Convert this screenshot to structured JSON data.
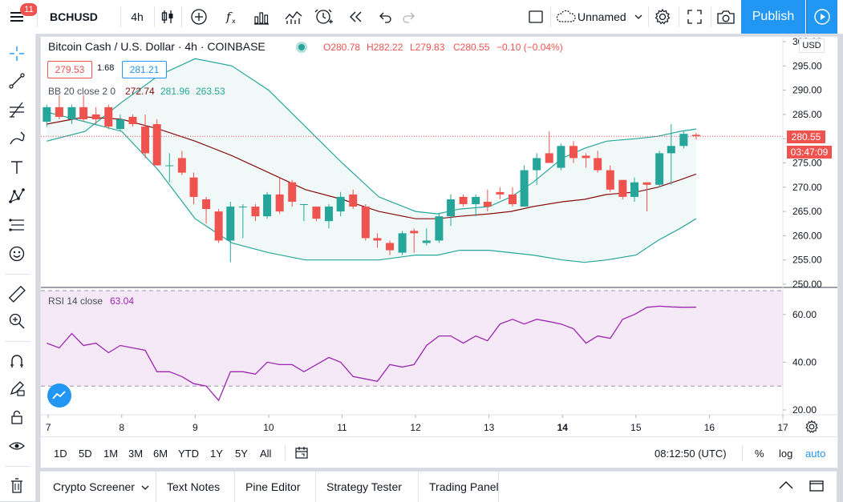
{
  "toolbar": {
    "notifications": "11",
    "symbol": "BCHUSD",
    "interval": "4h",
    "layout_name": "Unnamed",
    "publish_label": "Publish"
  },
  "legend": {
    "title": "Bitcoin Cash / U.S. Dollar · 4h · COINBASE",
    "open": "O280.78",
    "high": "H282.22",
    "low": "L279.83",
    "close": "C280.55",
    "change": "−0.10 (−0.04%)",
    "bid": "279.53",
    "spread": "1.68",
    "ask": "281.21",
    "bb_label": "BB 20 close 2 0",
    "bb_basis": "272.74",
    "bb_upper": "281.96",
    "bb_lower": "263.53",
    "rsi_label": "RSI 14 close",
    "rsi_value": "63.04"
  },
  "price_axis": {
    "currency": "USD",
    "last_price": "280.55",
    "countdown": "03:47:09"
  },
  "time_axis": {
    "time": "08:12:50 (UTC)"
  },
  "ranges": [
    "1D",
    "5D",
    "1M",
    "3M",
    "6M",
    "YTD",
    "1Y",
    "5Y",
    "All"
  ],
  "scale_options": {
    "percent": "%",
    "log": "log",
    "auto": "auto"
  },
  "bottom_tabs": [
    "Crypto Screener",
    "Text Notes",
    "Pine Editor",
    "Strategy Tester",
    "Trading Panel"
  ],
  "colors": {
    "up": "#26a69a",
    "down": "#ef5350",
    "accent": "#2196f3",
    "bb_band": "#26a69a",
    "bb_basis": "#880e0e",
    "rsi": "#9c27b0"
  },
  "chart_data": [
    {
      "type": "candlestick",
      "title": "Bitcoin Cash / U.S. Dollar · 4h · COINBASE",
      "x_ticks": [
        "7",
        "8",
        "9",
        "10",
        "11",
        "12",
        "13",
        "14",
        "15",
        "16",
        "17"
      ],
      "y_ticks": [
        250,
        255,
        260,
        265,
        270,
        275,
        280,
        285,
        290,
        295,
        300
      ],
      "ylim": [
        249.5,
        301
      ],
      "xlim": [
        6.9,
        17.0
      ],
      "candles": [
        {
          "t": 6.98,
          "o": 283.5,
          "h": 287.0,
          "l": 282.5,
          "c": 286.5
        },
        {
          "t": 7.15,
          "o": 286.5,
          "h": 289.0,
          "l": 284.0,
          "c": 284.5
        },
        {
          "t": 7.32,
          "o": 284.0,
          "h": 287.0,
          "l": 283.0,
          "c": 286.5
        },
        {
          "t": 7.48,
          "o": 286.5,
          "h": 289.0,
          "l": 283.5,
          "c": 284.0
        },
        {
          "t": 7.65,
          "o": 285.0,
          "h": 286.5,
          "l": 283.0,
          "c": 284.0
        },
        {
          "t": 7.82,
          "o": 286.5,
          "h": 287.0,
          "l": 282.0,
          "c": 282.5
        },
        {
          "t": 7.98,
          "o": 282.0,
          "h": 285.0,
          "l": 281.5,
          "c": 284.0
        },
        {
          "t": 8.15,
          "o": 284.5,
          "h": 285.0,
          "l": 282.5,
          "c": 283.0
        },
        {
          "t": 8.32,
          "o": 282.5,
          "h": 285.0,
          "l": 276.0,
          "c": 277.0
        },
        {
          "t": 8.48,
          "o": 283.0,
          "h": 284.0,
          "l": 274.5,
          "c": 274.5
        },
        {
          "t": 8.65,
          "o": 274.5,
          "h": 277.0,
          "l": 271.0,
          "c": 274.5
        },
        {
          "t": 8.82,
          "o": 276.0,
          "h": 277.5,
          "l": 272.5,
          "c": 273.0
        },
        {
          "t": 8.98,
          "o": 272.0,
          "h": 273.0,
          "l": 266.5,
          "c": 268.0
        },
        {
          "t": 9.15,
          "o": 267.5,
          "h": 268.0,
          "l": 262.5,
          "c": 265.5
        },
        {
          "t": 9.32,
          "o": 265.0,
          "h": 265.5,
          "l": 258.5,
          "c": 259.0
        },
        {
          "t": 9.48,
          "o": 259.0,
          "h": 267.0,
          "l": 254.5,
          "c": 266.0
        },
        {
          "t": 9.65,
          "o": 266.0,
          "h": 266.5,
          "l": 259.5,
          "c": 266.0
        },
        {
          "t": 9.82,
          "o": 266.0,
          "h": 266.5,
          "l": 263.0,
          "c": 264.0
        },
        {
          "t": 9.98,
          "o": 264.0,
          "h": 269.0,
          "l": 263.5,
          "c": 268.5
        },
        {
          "t": 10.15,
          "o": 268.5,
          "h": 272.0,
          "l": 264.5,
          "c": 265.0
        },
        {
          "t": 10.32,
          "o": 271.0,
          "h": 271.5,
          "l": 266.0,
          "c": 267.0
        },
        {
          "t": 10.48,
          "o": 266.5,
          "h": 266.5,
          "l": 263.0,
          "c": 266.5
        },
        {
          "t": 10.65,
          "o": 266.0,
          "h": 266.0,
          "l": 263.0,
          "c": 263.5
        },
        {
          "t": 10.82,
          "o": 263.0,
          "h": 266.5,
          "l": 261.5,
          "c": 266.0
        },
        {
          "t": 10.98,
          "o": 265.0,
          "h": 269.0,
          "l": 264.0,
          "c": 268.0
        },
        {
          "t": 11.15,
          "o": 268.5,
          "h": 269.5,
          "l": 265.5,
          "c": 266.0
        },
        {
          "t": 11.32,
          "o": 266.0,
          "h": 266.5,
          "l": 259.0,
          "c": 259.5
        },
        {
          "t": 11.48,
          "o": 259.5,
          "h": 260.5,
          "l": 257.5,
          "c": 259.0
        },
        {
          "t": 11.65,
          "o": 258.5,
          "h": 259.0,
          "l": 256.0,
          "c": 257.0
        },
        {
          "t": 11.82,
          "o": 256.5,
          "h": 261.0,
          "l": 256.0,
          "c": 260.5
        },
        {
          "t": 11.98,
          "o": 261.0,
          "h": 261.5,
          "l": 256.5,
          "c": 260.5
        },
        {
          "t": 12.15,
          "o": 258.5,
          "h": 261.5,
          "l": 258.0,
          "c": 259.0
        },
        {
          "t": 12.32,
          "o": 259.0,
          "h": 264.5,
          "l": 258.5,
          "c": 264.0
        },
        {
          "t": 12.48,
          "o": 264.0,
          "h": 268.5,
          "l": 262.0,
          "c": 267.5
        },
        {
          "t": 12.65,
          "o": 268.0,
          "h": 268.5,
          "l": 266.0,
          "c": 266.5
        },
        {
          "t": 12.82,
          "o": 266.5,
          "h": 268.5,
          "l": 264.0,
          "c": 268.0
        },
        {
          "t": 12.98,
          "o": 267.0,
          "h": 269.5,
          "l": 265.0,
          "c": 266.0
        },
        {
          "t": 13.15,
          "o": 269.0,
          "h": 270.0,
          "l": 267.5,
          "c": 268.5
        },
        {
          "t": 13.32,
          "o": 268.5,
          "h": 270.0,
          "l": 266.0,
          "c": 266.5
        },
        {
          "t": 13.48,
          "o": 266.0,
          "h": 274.5,
          "l": 266.0,
          "c": 273.5
        },
        {
          "t": 13.65,
          "o": 273.5,
          "h": 277.0,
          "l": 270.5,
          "c": 276.0
        },
        {
          "t": 13.82,
          "o": 277.0,
          "h": 281.5,
          "l": 275.5,
          "c": 275.0
        },
        {
          "t": 13.98,
          "o": 274.0,
          "h": 279.0,
          "l": 273.5,
          "c": 278.5
        },
        {
          "t": 14.15,
          "o": 278.5,
          "h": 279.5,
          "l": 275.0,
          "c": 276.0
        },
        {
          "t": 14.32,
          "o": 276.5,
          "h": 277.0,
          "l": 274.0,
          "c": 276.0
        },
        {
          "t": 14.48,
          "o": 276.0,
          "h": 277.5,
          "l": 273.0,
          "c": 273.5
        },
        {
          "t": 14.65,
          "o": 273.5,
          "h": 274.5,
          "l": 269.0,
          "c": 269.5
        },
        {
          "t": 14.82,
          "o": 271.5,
          "h": 271.5,
          "l": 267.5,
          "c": 268.0
        },
        {
          "t": 14.98,
          "o": 268.0,
          "h": 272.0,
          "l": 267.0,
          "c": 271.0
        },
        {
          "t": 15.15,
          "o": 271.0,
          "h": 271.0,
          "l": 265.0,
          "c": 270.5
        },
        {
          "t": 15.32,
          "o": 270.5,
          "h": 277.5,
          "l": 270.0,
          "c": 277.0
        },
        {
          "t": 15.48,
          "o": 277.0,
          "h": 283.0,
          "l": 270.5,
          "c": 278.5
        },
        {
          "t": 15.65,
          "o": 278.5,
          "h": 281.5,
          "l": 278.0,
          "c": 281.0
        },
        {
          "t": 15.82,
          "o": 280.8,
          "h": 281.2,
          "l": 279.8,
          "c": 280.5
        }
      ],
      "bb_upper": [
        [
          6.98,
          279.5
        ],
        [
          7.5,
          281.5
        ],
        [
          8.0,
          287.5
        ],
        [
          8.5,
          293.0
        ],
        [
          9.0,
          296.5
        ],
        [
          9.5,
          295.0
        ],
        [
          10.0,
          290.0
        ],
        [
          10.5,
          282.5
        ],
        [
          11.0,
          275.0
        ],
        [
          11.5,
          268.0
        ],
        [
          12.0,
          265.0
        ],
        [
          12.3,
          264.5
        ],
        [
          12.6,
          265.5
        ],
        [
          13.0,
          266.0
        ],
        [
          13.3,
          268.0
        ],
        [
          13.6,
          271.0
        ],
        [
          14.0,
          276.0
        ],
        [
          14.3,
          278.0
        ],
        [
          14.6,
          279.5
        ],
        [
          15.0,
          280.0
        ],
        [
          15.3,
          280.5
        ],
        [
          15.6,
          281.5
        ],
        [
          15.82,
          282.0
        ]
      ],
      "bb_basis": [
        [
          6.98,
          283.0
        ],
        [
          7.5,
          284.5
        ],
        [
          8.0,
          284.0
        ],
        [
          8.5,
          282.0
        ],
        [
          9.0,
          279.5
        ],
        [
          9.5,
          276.5
        ],
        [
          10.0,
          273.0
        ],
        [
          10.5,
          269.5
        ],
        [
          11.0,
          267.5
        ],
        [
          11.5,
          265.0
        ],
        [
          12.0,
          263.5
        ],
        [
          12.3,
          263.5
        ],
        [
          12.6,
          264.0
        ],
        [
          13.0,
          264.5
        ],
        [
          13.3,
          265.0
        ],
        [
          13.6,
          266.0
        ],
        [
          14.0,
          267.0
        ],
        [
          14.3,
          267.5
        ],
        [
          14.6,
          268.5
        ],
        [
          15.0,
          269.0
        ],
        [
          15.3,
          270.0
        ],
        [
          15.6,
          271.5
        ],
        [
          15.82,
          272.7
        ]
      ],
      "bb_lower": [
        [
          6.98,
          285.5
        ],
        [
          7.5,
          283.5
        ],
        [
          8.0,
          281.5
        ],
        [
          8.5,
          273.5
        ],
        [
          9.0,
          263.5
        ],
        [
          9.5,
          258.5
        ],
        [
          10.0,
          256.5
        ],
        [
          10.5,
          255.0
        ],
        [
          11.0,
          255.0
        ],
        [
          11.5,
          255.0
        ],
        [
          12.0,
          256.0
        ],
        [
          12.3,
          256.0
        ],
        [
          12.6,
          257.0
        ],
        [
          13.0,
          257.0
        ],
        [
          13.3,
          256.5
        ],
        [
          13.6,
          256.0
        ],
        [
          14.0,
          255.0
        ],
        [
          14.3,
          254.5
        ],
        [
          14.6,
          255.0
        ],
        [
          15.0,
          256.0
        ],
        [
          15.3,
          259.0
        ],
        [
          15.6,
          261.5
        ],
        [
          15.82,
          263.5
        ]
      ]
    },
    {
      "type": "line",
      "title": "RSI 14 close",
      "y_ticks": [
        20,
        40,
        60
      ],
      "ylim": [
        18,
        71
      ],
      "xlim": [
        6.9,
        17.0
      ],
      "bands": [
        30,
        70
      ],
      "x": [
        6.98,
        7.15,
        7.32,
        7.48,
        7.65,
        7.82,
        7.98,
        8.15,
        8.32,
        8.48,
        8.65,
        8.82,
        8.98,
        9.15,
        9.32,
        9.48,
        9.65,
        9.82,
        9.98,
        10.15,
        10.32,
        10.48,
        10.65,
        10.82,
        10.98,
        11.15,
        11.32,
        11.48,
        11.65,
        11.82,
        11.98,
        12.15,
        12.32,
        12.48,
        12.65,
        12.82,
        12.98,
        13.15,
        13.32,
        13.48,
        13.65,
        13.82,
        13.98,
        14.15,
        14.32,
        14.48,
        14.65,
        14.82,
        14.98,
        15.15,
        15.32,
        15.48,
        15.65,
        15.82
      ],
      "values": [
        48,
        46,
        52,
        47,
        48,
        44,
        47,
        46,
        45,
        36,
        36,
        34,
        31,
        30,
        24,
        36,
        36,
        35,
        40,
        39,
        39,
        36,
        39,
        42,
        40,
        34,
        33,
        32,
        39,
        38,
        39,
        47,
        51,
        51,
        48,
        51,
        49,
        56,
        58,
        56,
        58,
        57,
        56,
        54,
        48,
        51,
        50,
        58,
        60,
        63,
        63.5,
        63.2,
        63.0,
        63.04
      ]
    }
  ]
}
